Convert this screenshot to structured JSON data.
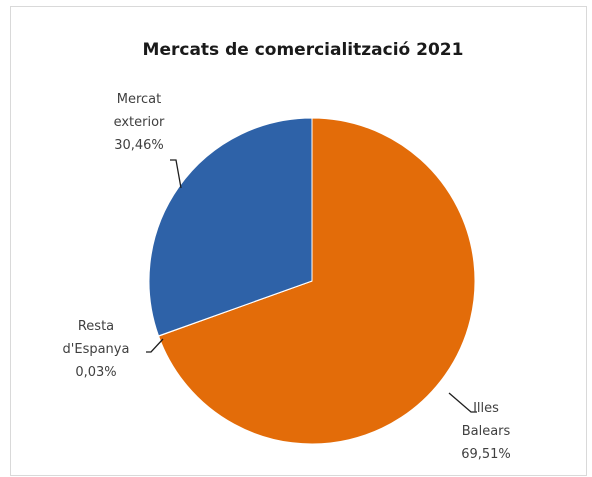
{
  "chart_data": {
    "type": "pie",
    "title": "Mercats de comercialització  2021",
    "slices": [
      {
        "label_lines": [
          "Illes",
          "Balears"
        ],
        "value_label": "69,51%",
        "value": 69.51,
        "color": "#e36c09"
      },
      {
        "label_lines": [
          "Resta",
          "d'Espanya"
        ],
        "value_label": "0,03%",
        "value": 0.03,
        "color": "#4a7ebb"
      },
      {
        "label_lines": [
          "Mercat",
          "exterior"
        ],
        "value_label": "30,46%",
        "value": 30.46,
        "color": "#2e62a8"
      }
    ],
    "start_angle": "12 o'clock",
    "direction": "clockwise",
    "legend": "none (data labels with leader lines)"
  }
}
